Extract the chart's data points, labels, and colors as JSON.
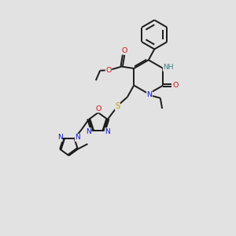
{
  "bg_color": "#e2e2e2",
  "bond_color": "#1a1a1a",
  "bond_width": 1.4,
  "atom_colors": {
    "N": "#1414cc",
    "O": "#cc1414",
    "S": "#b8a000",
    "H": "#3d8080"
  },
  "figsize": [
    3.0,
    3.0
  ],
  "dpi": 100
}
